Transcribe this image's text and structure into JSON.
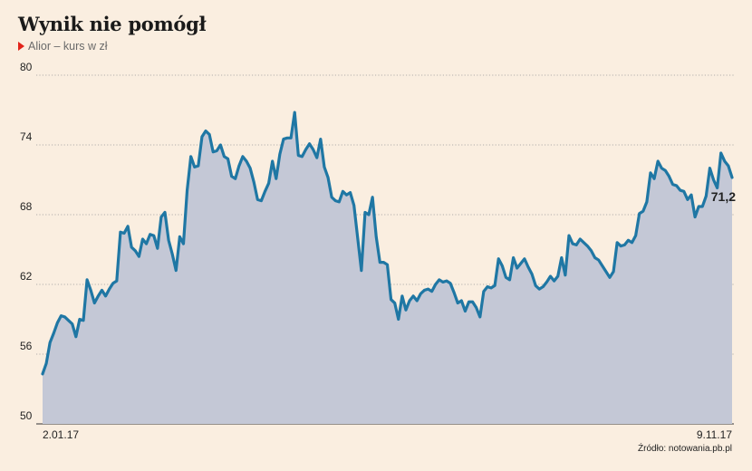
{
  "header": {
    "title": "Wynik nie pomógł",
    "subtitle": "Alior – kurs w zł"
  },
  "source": "Źródło: notowania.pb.pl",
  "colors": {
    "line": "#1f77a4",
    "area": "#c4c8d6",
    "background": "#faeee0",
    "marker": "#e2231a"
  },
  "chart_data": {
    "type": "area",
    "title": "Wynik nie pomógł",
    "subtitle": "Alior – kurs w zł",
    "xlabel": "",
    "ylabel": "",
    "ylim": [
      50,
      80
    ],
    "yticks": [
      80,
      74,
      68,
      62,
      56,
      50
    ],
    "xticks": [
      "2.01.17",
      "9.11.17"
    ],
    "grid": "horizontal-dotted",
    "end_label": "71,2",
    "series": [
      {
        "values": [
          54.3,
          55.2,
          57.0,
          57.8,
          58.7,
          59.3,
          59.2,
          58.9,
          58.6,
          57.5,
          59.0,
          58.9,
          62.4,
          61.5,
          60.4,
          61.0,
          61.5,
          61.0,
          61.6,
          62.1,
          62.3,
          66.5,
          66.4,
          67.0,
          65.2,
          64.9,
          64.4,
          65.9,
          65.5,
          66.3,
          66.2,
          65.1,
          67.8,
          68.2,
          65.8,
          64.6,
          63.2,
          66.1,
          65.5,
          70.1,
          73.0,
          72.1,
          72.2,
          74.7,
          75.2,
          74.9,
          73.4,
          73.5,
          74.0,
          73.0,
          72.8,
          71.3,
          71.1,
          72.2,
          73.0,
          72.6,
          72.0,
          70.8,
          69.3,
          69.2,
          70.0,
          70.7,
          72.6,
          71.1,
          73.2,
          74.5,
          74.6,
          74.6,
          76.8,
          73.1,
          73.0,
          73.6,
          74.1,
          73.6,
          72.9,
          74.5,
          72.1,
          71.2,
          69.5,
          69.2,
          69.1,
          70.0,
          69.7,
          69.9,
          68.8,
          66.0,
          63.2,
          68.2,
          68.0,
          69.5,
          66.1,
          63.9,
          63.9,
          63.7,
          60.7,
          60.4,
          59.0,
          61.0,
          59.8,
          60.6,
          61.0,
          60.6,
          61.2,
          61.5,
          61.6,
          61.4,
          62.0,
          62.4,
          62.2,
          62.3,
          62.1,
          61.3,
          60.4,
          60.6,
          59.7,
          60.5,
          60.5,
          60.0,
          59.2,
          61.4,
          61.8,
          61.7,
          61.9,
          64.2,
          63.6,
          62.6,
          62.4,
          64.3,
          63.4,
          63.8,
          64.2,
          63.5,
          62.9,
          61.9,
          61.6,
          61.8,
          62.2,
          62.7,
          62.3,
          62.7,
          64.3,
          62.8,
          66.2,
          65.5,
          65.4,
          65.9,
          65.6,
          65.3,
          64.9,
          64.3,
          64.1,
          63.6,
          63.1,
          62.6,
          63.1,
          65.6,
          65.3,
          65.4,
          65.8,
          65.6,
          66.2,
          68.1,
          68.3,
          69.1,
          71.6,
          71.1,
          72.6,
          72.0,
          71.8,
          71.3,
          70.6,
          70.5,
          70.1,
          70.0,
          69.3,
          69.7,
          67.8,
          68.7,
          68.7,
          69.6,
          72.0,
          71.0,
          70.3,
          73.3,
          72.6,
          72.2,
          71.2
        ]
      }
    ]
  }
}
